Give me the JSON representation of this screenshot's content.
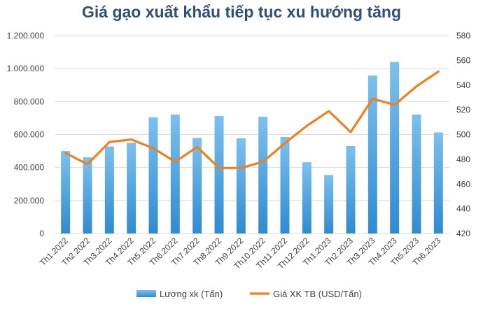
{
  "chart_data": {
    "type": "bar+line",
    "title": "Giá gạo xuất khẩu tiếp tục xu hướng tăng",
    "categories": [
      "Th1.2022",
      "Th2.2022",
      "Th3.2022",
      "Th4.2022",
      "Th5.2022",
      "Th6.2022",
      "Th7.2022",
      "Th8.2022",
      "Th9.2022",
      "Th10.2022",
      "Th11.2022",
      "Th12.2022",
      "Th1.2023",
      "Th2.2023",
      "Th3.2023",
      "Th4.2023",
      "Th5.2023",
      "Th6.2023"
    ],
    "series": [
      {
        "name": "Lượng xk (Tấn)",
        "type": "bar",
        "axis": "left",
        "values": [
          500000,
          462000,
          528000,
          550000,
          705000,
          722000,
          580000,
          712000,
          578000,
          708000,
          585000,
          432000,
          355000,
          530000,
          958000,
          1040000,
          722000,
          613000
        ]
      },
      {
        "name": "Giá XK TB (USD/Tấn)",
        "type": "line",
        "axis": "right",
        "values": [
          485,
          476,
          494,
          496,
          489,
          478,
          490,
          473,
          473,
          478,
          493,
          507,
          519,
          502,
          529,
          524,
          539,
          551
        ]
      }
    ],
    "y_left": {
      "lim": [
        0,
        1200000
      ],
      "ticks": [
        "0",
        "200.000",
        "400.000",
        "600.000",
        "800.000",
        "1.000.000",
        "1.200.000"
      ]
    },
    "y_right": {
      "lim": [
        420,
        580
      ],
      "ticks": [
        "420",
        "440",
        "460",
        "480",
        "500",
        "520",
        "540",
        "560",
        "580"
      ]
    },
    "grid": "horizontal",
    "legend": "bottom",
    "colors": {
      "bar": "#3f9ad8",
      "bar_light": "#7cc0ef",
      "line": "#f07f1f",
      "grid": "#d9d9d9",
      "axis_text": "#404040"
    }
  }
}
